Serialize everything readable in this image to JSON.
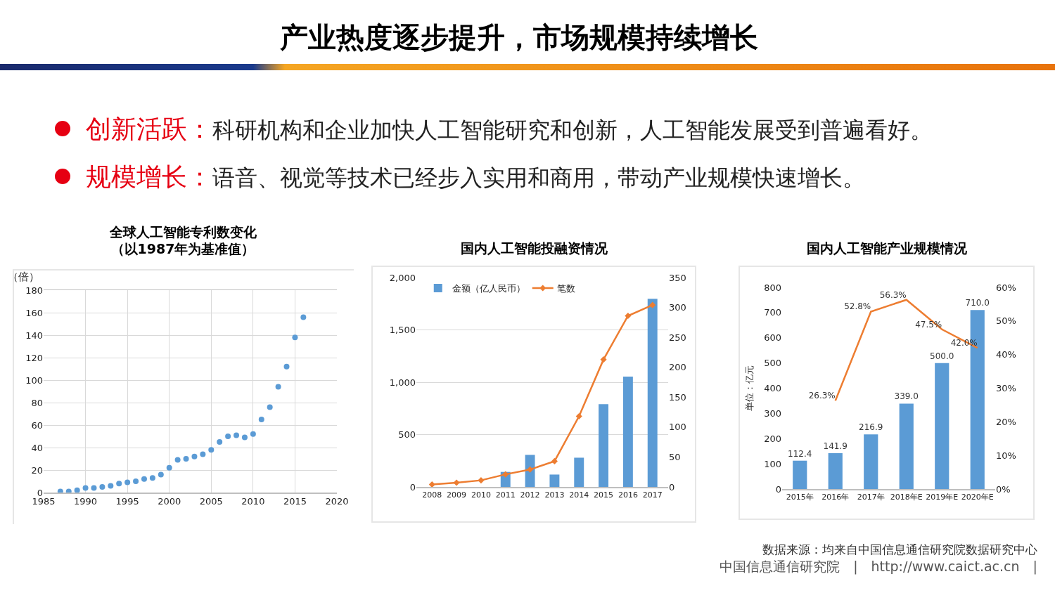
{
  "chart_data": [
    {
      "type": "scatter",
      "title": "全球人工智能专利数变化",
      "subtitle": "（以1987年为基准值）",
      "ylabel": "（倍）",
      "annotations": [
        "产业热度逐步提升，市场规模持续增长",
        "创新活跃：科研机构和企业加快人工智能研究和创新，人工智能发展受到普遍看好。",
        "规模增长：语音、视觉等技术已经步入实用和商用，带动产业规模快速增长。"
      ],
      "x": [
        1987,
        1988,
        1989,
        1990,
        1991,
        1992,
        1993,
        1994,
        1995,
        1996,
        1997,
        1998,
        1999,
        2000,
        2001,
        2002,
        2003,
        2004,
        2005,
        2006,
        2007,
        2008,
        2009,
        2010,
        2011,
        2012,
        2013,
        2014,
        2015,
        2016
      ],
      "series": [
        {
          "color": "#5b9bd5",
          "values": [
            1,
            1,
            2,
            4,
            4,
            5,
            6,
            8,
            9,
            10,
            12,
            13,
            16,
            22,
            29,
            30,
            32,
            34,
            38,
            45,
            50,
            51,
            49,
            52,
            65,
            76,
            94,
            112,
            138,
            156
          ]
        }
      ],
      "marker": "circle",
      "xlim": [
        1985,
        2020
      ],
      "xticks": [
        1985,
        1990,
        1995,
        2000,
        2005,
        2010,
        2015,
        2020
      ],
      "ylim": [
        0,
        180
      ],
      "yticks": [
        0,
        20,
        40,
        60,
        80,
        100,
        120,
        140,
        160,
        180
      ],
      "grid": true,
      "legend": false
    },
    {
      "type": "bar",
      "title": "国内人工智能投融资情况",
      "categories": [
        "2008",
        "2009",
        "2010",
        "2011",
        "2012",
        "2013",
        "2014",
        "2015",
        "2016",
        "2017"
      ],
      "series": [
        {
          "name": "金额（亿人民币）",
          "color": "#5b9bd5",
          "values": [
            null,
            null,
            null,
            143,
            306,
            118,
            279,
            790,
            1054,
            1797
          ]
        },
        {
          "name": "笔数",
          "type": "line",
          "axis": "y2",
          "color": "#ed7d31",
          "values": [
            4,
            7,
            11,
            21,
            29,
            43,
            118,
            213,
            286,
            304
          ]
        }
      ],
      "marker": "diamond",
      "ylim": [
        0,
        2000
      ],
      "yticks": [
        0,
        {
          "value": 500,
          "label": "500"
        },
        {
          "value": 1000,
          "label": "1,000"
        },
        {
          "value": 1500,
          "label": "1,500"
        },
        {
          "value": 2000,
          "label": "2,000"
        }
      ],
      "y2lim": [
        0,
        350
      ],
      "y2ticks": [
        0,
        50,
        100,
        150,
        200,
        250,
        300,
        350
      ],
      "grid": "y",
      "legend": "top left"
    },
    {
      "type": "bar",
      "title": "国内人工智能产业规模情况",
      "ylabel": "单位：亿元",
      "annotations": [
        "数据来源：均来自中国信息通信研究院数据研究中心",
        "中国信息通信研究院　|　http://www.caict.ac.cn　|"
      ],
      "categories": [
        "2015年",
        "2016年",
        "2017年",
        "2018年E",
        "2019年E",
        "2020年E"
      ],
      "series": [
        {
          "color": "#5b9bd5",
          "values": [
            112.4,
            141.9,
            216.9,
            339,
            500,
            710
          ],
          "value_labels": [
            "112.4",
            "141.9",
            "216.9",
            "339.0",
            "500.0",
            "710.0"
          ]
        },
        {
          "type": "line",
          "axis": "y2",
          "color": "#ed7d31",
          "values": [
            null,
            26.3,
            52.8,
            56.3,
            47.5,
            42
          ],
          "value_labels": [
            null,
            "26.3%",
            "52.8%",
            "56.3%",
            "47.5%",
            "42.0%"
          ]
        }
      ],
      "ylim": [
        0,
        800
      ],
      "yticks": [
        0,
        100,
        200,
        300,
        400,
        500,
        600,
        700,
        800
      ],
      "y2lim": [
        0,
        60
      ],
      "y2ticks": [
        {
          "value": 0,
          "label": "0%"
        },
        {
          "value": 10,
          "label": "10%"
        },
        {
          "value": 20,
          "label": "20%"
        },
        {
          "value": 30,
          "label": "30%"
        },
        {
          "value": 40,
          "label": "40%"
        },
        {
          "value": 50,
          "label": "50%"
        },
        {
          "value": 60,
          "label": "60%"
        }
      ],
      "grid": false,
      "legend": false
    }
  ]
}
